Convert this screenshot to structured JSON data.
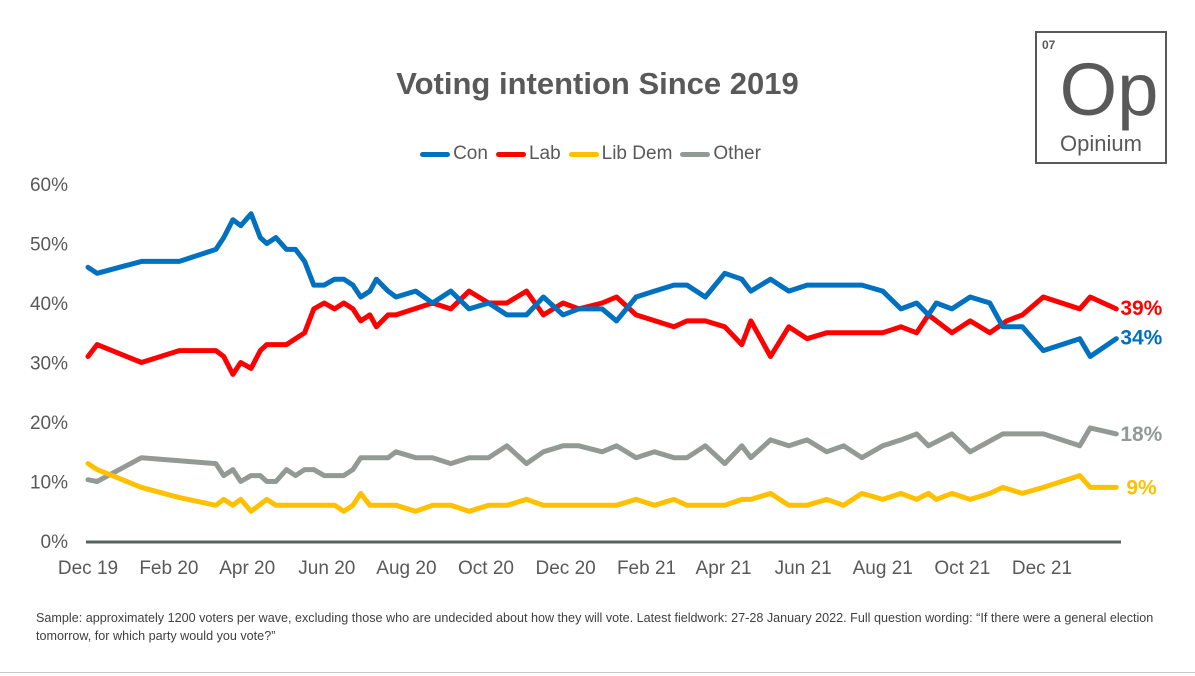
{
  "chart_data": {
    "type": "line",
    "title": "Voting intention Since 2019",
    "ylim": [
      0,
      60
    ],
    "yticks": [
      "0%",
      "10%",
      "20%",
      "30%",
      "40%",
      "50%",
      "60%"
    ],
    "ytick_values": [
      0,
      10,
      20,
      30,
      40,
      50,
      60
    ],
    "xtick_labels": [
      "Dec 19",
      "Feb 20",
      "Apr 20",
      "Jun 20",
      "Aug 20",
      "Oct 20",
      "Dec 20",
      "Feb 21",
      "Apr 21",
      "Jun 21",
      "Aug 21",
      "Oct 21",
      "Dec 21"
    ],
    "xtick_dates": [
      "2019-12-01",
      "2020-02-01",
      "2020-04-01",
      "2020-06-01",
      "2020-08-01",
      "2020-10-01",
      "2020-12-01",
      "2021-02-01",
      "2021-04-01",
      "2021-06-01",
      "2021-08-01",
      "2021-10-01",
      "2021-12-01"
    ],
    "grid": false,
    "legend_placement": "top",
    "series": [
      {
        "name": "Con",
        "color": "#0070C0",
        "end_label": "34%",
        "points": [
          [
            "2019-12-01",
            46
          ],
          [
            "2019-12-08",
            45
          ],
          [
            "2020-01-11",
            47
          ],
          [
            "2020-02-09",
            47
          ],
          [
            "2020-03-08",
            49
          ],
          [
            "2020-03-14",
            51
          ],
          [
            "2020-03-21",
            54
          ],
          [
            "2020-03-27",
            53
          ],
          [
            "2020-04-04",
            55
          ],
          [
            "2020-04-11",
            51
          ],
          [
            "2020-04-16",
            50
          ],
          [
            "2020-04-23",
            51
          ],
          [
            "2020-05-01",
            49
          ],
          [
            "2020-05-08",
            49
          ],
          [
            "2020-05-15",
            47
          ],
          [
            "2020-05-22",
            43
          ],
          [
            "2020-05-30",
            43
          ],
          [
            "2020-06-07",
            44
          ],
          [
            "2020-06-14",
            44
          ],
          [
            "2020-06-21",
            43
          ],
          [
            "2020-06-27",
            41
          ],
          [
            "2020-07-04",
            42
          ],
          [
            "2020-07-09",
            44
          ],
          [
            "2020-07-18",
            42
          ],
          [
            "2020-07-24",
            41
          ],
          [
            "2020-08-08",
            42
          ],
          [
            "2020-08-21",
            40
          ],
          [
            "2020-09-04",
            42
          ],
          [
            "2020-09-18",
            39
          ],
          [
            "2020-10-03",
            40
          ],
          [
            "2020-10-17",
            38
          ],
          [
            "2020-11-01",
            38
          ],
          [
            "2020-11-14",
            41
          ],
          [
            "2020-11-29",
            38
          ],
          [
            "2020-12-11",
            39
          ],
          [
            "2020-12-29",
            39
          ],
          [
            "2021-01-09",
            37
          ],
          [
            "2021-01-24",
            41
          ],
          [
            "2021-02-07",
            42
          ],
          [
            "2021-02-22",
            43
          ],
          [
            "2021-03-04",
            43
          ],
          [
            "2021-03-18",
            41
          ],
          [
            "2021-04-02",
            45
          ],
          [
            "2021-04-15",
            44
          ],
          [
            "2021-04-22",
            42
          ],
          [
            "2021-05-07",
            44
          ],
          [
            "2021-05-21",
            42
          ],
          [
            "2021-06-04",
            43
          ],
          [
            "2021-07-16",
            43
          ],
          [
            "2021-08-01",
            42
          ],
          [
            "2021-08-15",
            39
          ],
          [
            "2021-08-27",
            40
          ],
          [
            "2021-09-05",
            38
          ],
          [
            "2021-09-11",
            40
          ],
          [
            "2021-09-23",
            39
          ],
          [
            "2021-10-07",
            41
          ],
          [
            "2021-10-22",
            40
          ],
          [
            "2021-11-01",
            36
          ],
          [
            "2021-11-16",
            36
          ],
          [
            "2021-12-02",
            32
          ],
          [
            "2021-12-30",
            34
          ],
          [
            "2022-01-07",
            31
          ],
          [
            "2022-01-27",
            34
          ]
        ]
      },
      {
        "name": "Lab",
        "color": "#FF0000",
        "end_label": "39%",
        "points": [
          [
            "2019-12-01",
            31
          ],
          [
            "2019-12-08",
            33
          ],
          [
            "2020-01-11",
            30
          ],
          [
            "2020-02-09",
            32
          ],
          [
            "2020-03-08",
            32
          ],
          [
            "2020-03-14",
            31
          ],
          [
            "2020-03-21",
            28
          ],
          [
            "2020-03-27",
            30
          ],
          [
            "2020-04-04",
            29
          ],
          [
            "2020-04-11",
            32
          ],
          [
            "2020-04-16",
            33
          ],
          [
            "2020-05-01",
            33
          ],
          [
            "2020-05-15",
            35
          ],
          [
            "2020-05-22",
            39
          ],
          [
            "2020-05-30",
            40
          ],
          [
            "2020-06-07",
            39
          ],
          [
            "2020-06-14",
            40
          ],
          [
            "2020-06-21",
            39
          ],
          [
            "2020-06-27",
            37
          ],
          [
            "2020-07-04",
            38
          ],
          [
            "2020-07-09",
            36
          ],
          [
            "2020-07-18",
            38
          ],
          [
            "2020-07-24",
            38
          ],
          [
            "2020-08-21",
            40
          ],
          [
            "2020-09-04",
            39
          ],
          [
            "2020-09-18",
            42
          ],
          [
            "2020-10-03",
            40
          ],
          [
            "2020-10-17",
            40
          ],
          [
            "2020-11-01",
            42
          ],
          [
            "2020-11-14",
            38
          ],
          [
            "2020-11-29",
            40
          ],
          [
            "2020-12-11",
            39
          ],
          [
            "2020-12-29",
            40
          ],
          [
            "2021-01-09",
            41
          ],
          [
            "2021-01-24",
            38
          ],
          [
            "2021-02-22",
            36
          ],
          [
            "2021-03-04",
            37
          ],
          [
            "2021-03-18",
            37
          ],
          [
            "2021-04-02",
            36
          ],
          [
            "2021-04-15",
            33
          ],
          [
            "2021-04-22",
            37
          ],
          [
            "2021-05-07",
            31
          ],
          [
            "2021-05-21",
            36
          ],
          [
            "2021-06-04",
            34
          ],
          [
            "2021-06-19",
            35
          ],
          [
            "2021-08-01",
            35
          ],
          [
            "2021-08-15",
            36
          ],
          [
            "2021-08-27",
            35
          ],
          [
            "2021-09-05",
            38
          ],
          [
            "2021-09-23",
            35
          ],
          [
            "2021-10-07",
            37
          ],
          [
            "2021-10-22",
            35
          ],
          [
            "2021-11-04",
            37
          ],
          [
            "2021-11-16",
            38
          ],
          [
            "2021-12-02",
            41
          ],
          [
            "2021-12-30",
            39
          ],
          [
            "2022-01-07",
            41
          ],
          [
            "2022-01-27",
            39
          ]
        ]
      },
      {
        "name": "Lib Dem",
        "color": "#FFC000",
        "end_label": "9%",
        "points": [
          [
            "2019-12-01",
            13
          ],
          [
            "2019-12-08",
            12
          ],
          [
            "2020-01-11",
            9
          ],
          [
            "2020-02-09",
            7.3
          ],
          [
            "2020-03-08",
            6
          ],
          [
            "2020-03-14",
            7
          ],
          [
            "2020-03-21",
            6
          ],
          [
            "2020-03-27",
            7
          ],
          [
            "2020-04-04",
            5
          ],
          [
            "2020-04-16",
            7
          ],
          [
            "2020-04-23",
            6
          ],
          [
            "2020-06-07",
            6
          ],
          [
            "2020-06-14",
            5
          ],
          [
            "2020-06-21",
            6
          ],
          [
            "2020-06-27",
            8
          ],
          [
            "2020-07-04",
            6
          ],
          [
            "2020-07-24",
            6
          ],
          [
            "2020-08-08",
            5
          ],
          [
            "2020-08-21",
            6
          ],
          [
            "2020-09-04",
            6
          ],
          [
            "2020-09-18",
            5
          ],
          [
            "2020-10-03",
            6
          ],
          [
            "2020-10-17",
            6
          ],
          [
            "2020-11-01",
            7
          ],
          [
            "2020-11-14",
            6
          ],
          [
            "2021-01-09",
            6
          ],
          [
            "2021-01-24",
            7
          ],
          [
            "2021-02-07",
            6
          ],
          [
            "2021-02-22",
            7
          ],
          [
            "2021-03-04",
            6
          ],
          [
            "2021-04-02",
            6
          ],
          [
            "2021-04-15",
            7
          ],
          [
            "2021-04-22",
            7
          ],
          [
            "2021-05-07",
            8
          ],
          [
            "2021-05-21",
            6
          ],
          [
            "2021-06-04",
            6
          ],
          [
            "2021-06-19",
            7
          ],
          [
            "2021-07-02",
            6
          ],
          [
            "2021-07-16",
            8
          ],
          [
            "2021-08-01",
            7
          ],
          [
            "2021-08-15",
            8
          ],
          [
            "2021-08-27",
            7
          ],
          [
            "2021-09-05",
            8
          ],
          [
            "2021-09-11",
            7
          ],
          [
            "2021-09-23",
            8
          ],
          [
            "2021-10-07",
            7
          ],
          [
            "2021-10-22",
            8
          ],
          [
            "2021-11-01",
            9
          ],
          [
            "2021-11-16",
            8
          ],
          [
            "2021-12-02",
            9
          ],
          [
            "2021-12-30",
            11
          ],
          [
            "2022-01-07",
            9
          ],
          [
            "2022-01-27",
            9
          ]
        ]
      },
      {
        "name": "Other",
        "color": "#939A96",
        "end_label": "18%",
        "points": [
          [
            "2019-12-01",
            10.3
          ],
          [
            "2019-12-08",
            10
          ],
          [
            "2020-01-11",
            14
          ],
          [
            "2020-02-09",
            13.5
          ],
          [
            "2020-03-08",
            13
          ],
          [
            "2020-03-14",
            11
          ],
          [
            "2020-03-21",
            12
          ],
          [
            "2020-03-27",
            10
          ],
          [
            "2020-04-04",
            11
          ],
          [
            "2020-04-11",
            11
          ],
          [
            "2020-04-16",
            10
          ],
          [
            "2020-04-23",
            10
          ],
          [
            "2020-05-01",
            12
          ],
          [
            "2020-05-08",
            11
          ],
          [
            "2020-05-15",
            12
          ],
          [
            "2020-05-22",
            12
          ],
          [
            "2020-05-30",
            11
          ],
          [
            "2020-06-14",
            11
          ],
          [
            "2020-06-21",
            12
          ],
          [
            "2020-06-27",
            14
          ],
          [
            "2020-07-18",
            14
          ],
          [
            "2020-07-24",
            15
          ],
          [
            "2020-08-08",
            14
          ],
          [
            "2020-08-21",
            14
          ],
          [
            "2020-09-04",
            13
          ],
          [
            "2020-09-18",
            14
          ],
          [
            "2020-10-03",
            14
          ],
          [
            "2020-10-17",
            16
          ],
          [
            "2020-11-01",
            13
          ],
          [
            "2020-11-14",
            15
          ],
          [
            "2020-11-29",
            16
          ],
          [
            "2020-12-11",
            16
          ],
          [
            "2020-12-29",
            15
          ],
          [
            "2021-01-09",
            16
          ],
          [
            "2021-01-24",
            14
          ],
          [
            "2021-02-07",
            15
          ],
          [
            "2021-02-22",
            14
          ],
          [
            "2021-03-04",
            14
          ],
          [
            "2021-03-18",
            16
          ],
          [
            "2021-04-02",
            13
          ],
          [
            "2021-04-15",
            16
          ],
          [
            "2021-04-22",
            14
          ],
          [
            "2021-05-07",
            17
          ],
          [
            "2021-05-21",
            16
          ],
          [
            "2021-06-04",
            17
          ],
          [
            "2021-06-19",
            15
          ],
          [
            "2021-07-02",
            16
          ],
          [
            "2021-07-16",
            14
          ],
          [
            "2021-08-01",
            16
          ],
          [
            "2021-08-15",
            17
          ],
          [
            "2021-08-27",
            18
          ],
          [
            "2021-09-05",
            16
          ],
          [
            "2021-09-23",
            18
          ],
          [
            "2021-10-07",
            15
          ],
          [
            "2021-11-01",
            18
          ],
          [
            "2021-12-02",
            18
          ],
          [
            "2021-12-30",
            16
          ],
          [
            "2022-01-07",
            19
          ],
          [
            "2022-01-27",
            18
          ]
        ]
      }
    ]
  },
  "logo": {
    "number": "07",
    "symbol": "Op",
    "name": "Opinium"
  },
  "footnote": "Sample: approximately 1200 voters per wave, excluding those who are undecided about how they will vote. Latest fieldwork: 27-28 January 2022. Full question wording: “If there were a general election tomorrow, for which party would you vote?”"
}
